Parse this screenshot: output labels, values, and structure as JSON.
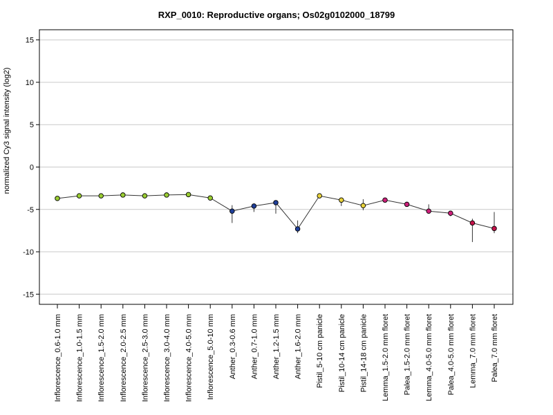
{
  "chart_data": {
    "type": "line",
    "title": "RXP_0010: Reproductive organs; Os02g0102000_18799",
    "xlabel": "",
    "ylabel": "normalized Cy3 signal intensity (log2)",
    "ylim": [
      -16.2,
      16.2
    ],
    "yticks": [
      -15,
      -10,
      -5,
      0,
      5,
      10,
      15
    ],
    "grid": "horizontal",
    "categories": [
      "Inflorescence_0.6-1.0 mm",
      "Inflorescence_1.0-1.5 mm",
      "Inflorescence_1.5-2.0 mm",
      "Inflorescence_2.0-2.5 mm",
      "Inflorescence_2.5-3.0 mm",
      "Inflorescence_3.0-4.0 mm",
      "Inflorescence_4.0-5.0 mm",
      "Inflorescence_5.0-10 mm",
      "Anther_0.3-0.6 mm",
      "Anther_0.7-1.0 mm",
      "Anther_1.2-1.5 mm",
      "Anther_1.6-2.0 mm",
      "Pistil_5-10 cm panicle",
      "Pistil_10-14 cm panicle",
      "Pistil_14-18 cm panicle",
      "Lemma_1.5-2.0 mm floret",
      "Palea_1.5-2.0 mm floret",
      "Lemma_4.0-5.0 mm floret",
      "Palea_4.0-5.0 mm floret",
      "Lemma_7.0 mm floret",
      "Palea_7.0 mm floret"
    ],
    "values": [
      -3.7,
      -3.4,
      -3.4,
      -3.3,
      -3.4,
      -3.3,
      -3.25,
      -3.65,
      -5.2,
      -4.6,
      -4.2,
      -7.3,
      -3.4,
      -3.9,
      -4.55,
      -3.9,
      -4.4,
      -5.2,
      -5.45,
      -6.6,
      -7.25
    ],
    "error_low": [
      -3.7,
      -3.4,
      -3.4,
      -3.3,
      -3.4,
      -3.3,
      -3.25,
      -3.65,
      -6.6,
      -5.3,
      -5.5,
      -7.8,
      -3.4,
      -4.6,
      -5.1,
      -3.9,
      -4.6,
      -5.3,
      -5.8,
      -8.85,
      -7.8
    ],
    "error_high": [
      -3.7,
      -3.4,
      -3.4,
      -3.3,
      -3.4,
      -3.3,
      -3.25,
      -3.65,
      -4.5,
      -4.4,
      -4.0,
      -6.3,
      -3.4,
      -3.8,
      -3.8,
      -3.9,
      -4.2,
      -4.4,
      -5.3,
      -6.1,
      -5.3
    ],
    "point_colors": [
      "#9acd32",
      "#9acd32",
      "#9acd32",
      "#9acd32",
      "#9acd32",
      "#9acd32",
      "#9acd32",
      "#9acd32",
      "#1f3f9a",
      "#1f3f9a",
      "#1f3f9a",
      "#1f3f9a",
      "#e8d23a",
      "#e8d23a",
      "#e8d23a",
      "#cc1f7a",
      "#cc1f7a",
      "#cc1f7a",
      "#cc1f7a",
      "#c4124a",
      "#c4124a"
    ],
    "line_color": "#333333",
    "grid_color": "#c8c8c8"
  }
}
